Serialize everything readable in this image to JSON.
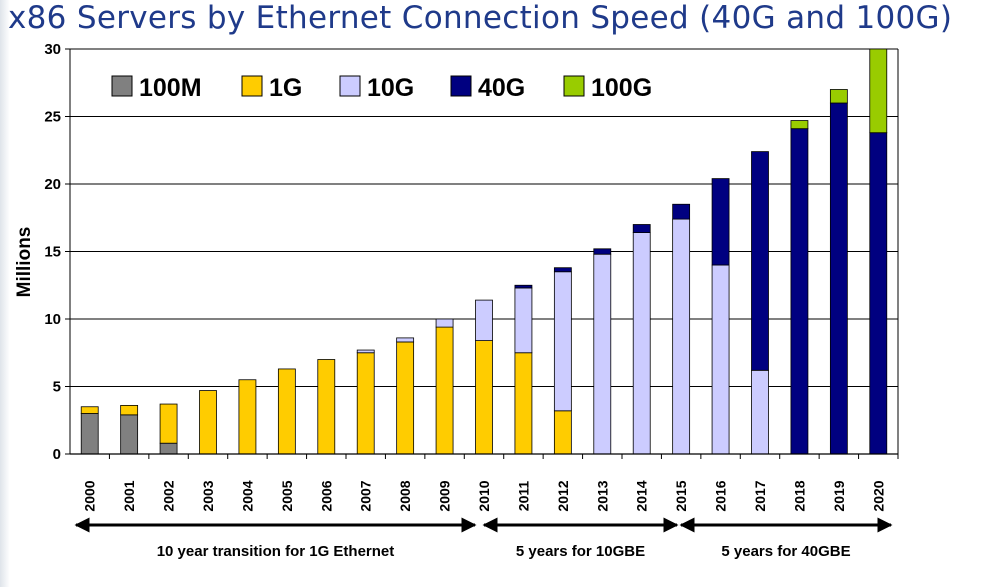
{
  "title": "x86 Servers by Ethernet Connection Speed (40G and 100G)",
  "chart_data": {
    "type": "bar",
    "stacked": true,
    "title": "x86 Servers by Ethernet Connection Speed (40G and 100G)",
    "xlabel": "",
    "ylabel": "Millions",
    "ylim": [
      0,
      30
    ],
    "yticks": [
      "0",
      "5",
      "10",
      "15",
      "20",
      "25",
      "30"
    ],
    "grid": true,
    "legend_position": "top-left",
    "categories": [
      "2000",
      "2001",
      "2002",
      "2003",
      "2004",
      "2005",
      "2006",
      "2007",
      "2008",
      "2009",
      "2010",
      "2011",
      "2012",
      "2013",
      "2014",
      "2015",
      "2016",
      "2017",
      "2018",
      "2019",
      "2020"
    ],
    "series": [
      {
        "name": "100M",
        "color": "#808080",
        "values": [
          3.0,
          2.9,
          0.8,
          0,
          0,
          0,
          0,
          0,
          0,
          0,
          0,
          0,
          0,
          0,
          0,
          0,
          0,
          0,
          0,
          0,
          0
        ]
      },
      {
        "name": "1G",
        "color": "#ffcc00",
        "values": [
          0.5,
          0.7,
          2.9,
          4.7,
          5.5,
          6.3,
          7.0,
          7.5,
          8.3,
          9.4,
          8.4,
          7.5,
          3.2,
          0,
          0,
          0,
          0,
          0,
          0,
          0,
          0
        ]
      },
      {
        "name": "10G",
        "color": "#ccccff",
        "values": [
          0,
          0,
          0,
          0,
          0,
          0,
          0,
          0.2,
          0.3,
          0.6,
          3.0,
          4.8,
          10.3,
          14.8,
          16.4,
          17.4,
          14.0,
          6.2,
          0,
          0,
          0
        ]
      },
      {
        "name": "40G",
        "color": "#000080",
        "values": [
          0,
          0,
          0,
          0,
          0,
          0,
          0,
          0,
          0,
          0,
          0,
          0.2,
          0.3,
          0.4,
          0.6,
          1.1,
          6.4,
          16.2,
          24.1,
          26.0,
          23.8
        ]
      },
      {
        "name": "100G",
        "color": "#99cc00",
        "values": [
          0,
          0,
          0,
          0,
          0,
          0,
          0,
          0,
          0,
          0,
          0,
          0,
          0,
          0,
          0,
          0,
          0,
          0,
          0.6,
          1.0,
          6.2
        ]
      }
    ],
    "annotations": [
      {
        "text": "10 year transition for 1G Ethernet",
        "from": "2000",
        "to": "2010"
      },
      {
        "text": "5 years for 10GBE",
        "from": "2010",
        "to": "2015"
      },
      {
        "text": "5 years for 40GBE",
        "from": "2015",
        "to": "2020"
      }
    ]
  }
}
